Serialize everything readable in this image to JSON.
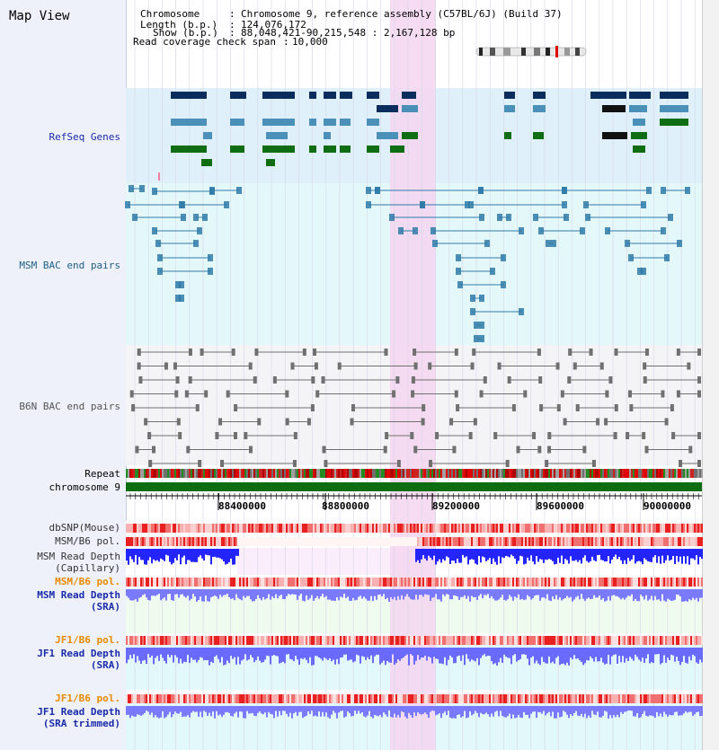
{
  "app": {
    "title": "Map View"
  },
  "info": {
    "chromosome_key": "Chromosome",
    "chromosome_val": "Chromosome 9, reference assembly (C57BL/6J) (Build 37)",
    "length_key": "Length (b.p.)",
    "length_val": "124,076,172",
    "show_key": "Show (b.p.)",
    "show_val": "88,048,421-90,215,548 : 2,167,128 bp",
    "coverage_key": "Read coverage check span",
    "coverage_val": "10,000"
  },
  "tracks": {
    "refseq": "RefSeq Genes",
    "msm_bac": "MSM BAC end pairs",
    "b6n_bac": "B6N BAC end pairs",
    "repeat": "Repeat",
    "chromosome": "chromosome 9",
    "dbsnp": "dbSNP(Mouse)",
    "msm_pol": "MSM/B6 pol.",
    "msm_depth_cap_1": "MSM Read Depth",
    "msm_depth_cap_2": "(Capillary)",
    "msm_pol_sra": "MSM/B6 pol.",
    "msm_depth_sra_1": "MSM Read Depth",
    "msm_depth_sra_2": "(SRA)",
    "jf1_pol": "JF1/B6 pol.",
    "jf1_depth_1": "JF1 Read Depth",
    "jf1_depth_2": "(SRA)",
    "jf1_pol_trim": "JF1/B6 pol.",
    "jf1_trim_1": "JF1 Read Depth",
    "jf1_trim_2": "(SRA trimmed)"
  },
  "ruler": {
    "ticks": [
      "88400000",
      "88800000",
      "89200000",
      "89600000",
      "90000000"
    ]
  },
  "colors": {
    "refseq_bg": "#dff0fb",
    "msm_bg": "#e4f8fa",
    "b6n_bg": "#f4f4f6",
    "highlight": "#f5d6f0",
    "dark_navy": "#0b2d5e",
    "steel_blue": "#4a90b8",
    "gene_green": "#0f6e14",
    "msm_pair": "#2f7aa8",
    "b6n_pair": "#707070",
    "chrom_bar": "#0e6d10",
    "depth_blue": "#3030ff",
    "label_orange": "#e88a00",
    "label_blue": "#1a2ba8"
  }
}
